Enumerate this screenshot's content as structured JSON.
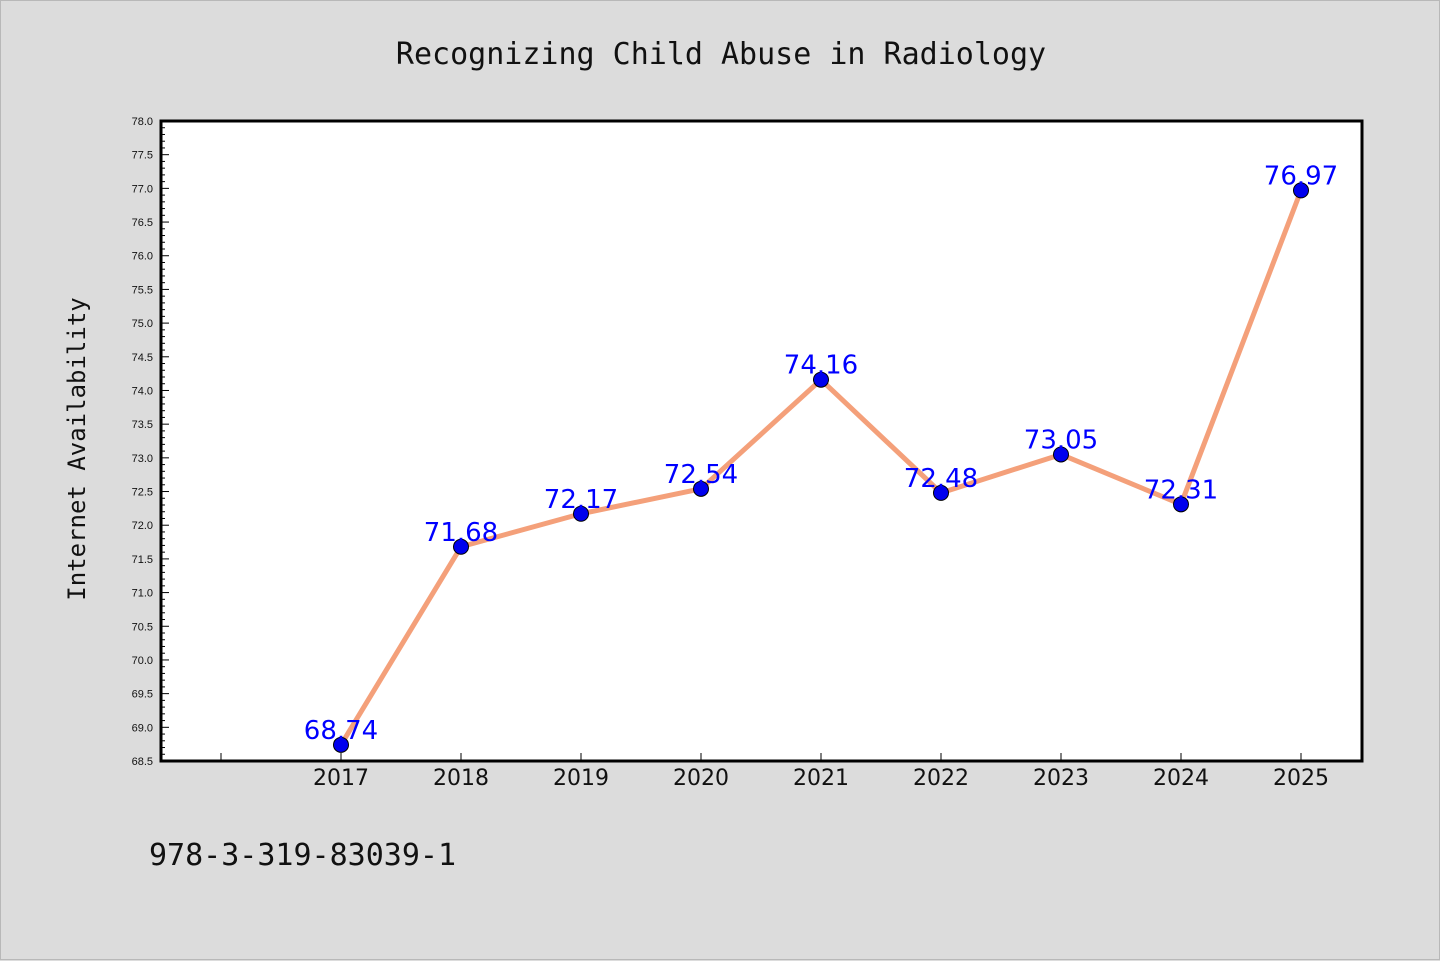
{
  "chart_data": {
    "type": "line",
    "title": "Recognizing Child Abuse in Radiology",
    "ylabel": "Internet Availability",
    "xlabel": "",
    "x": [
      "2017",
      "2018",
      "2019",
      "2020",
      "2021",
      "2022",
      "2023",
      "2024",
      "2025"
    ],
    "series": [
      {
        "values": [
          68.74,
          71.68,
          72.17,
          72.54,
          74.16,
          72.48,
          73.05,
          72.31,
          76.97
        ]
      }
    ],
    "data_labels": [
      "68.74",
      "71.68",
      "72.17",
      "72.54",
      "74.16",
      "72.48",
      "73.05",
      "72.31",
      "76.97"
    ],
    "ylim": [
      68.5,
      78.0
    ],
    "yticks": [
      "68.5",
      "69.0",
      "69.5",
      "70.0",
      "70.5",
      "71.0",
      "71.5",
      "72.0",
      "72.5",
      "73.0",
      "73.5",
      "74.0",
      "74.5",
      "75.0",
      "75.5",
      "76.0",
      "76.5",
      "77.0",
      "77.5",
      "78.0"
    ],
    "grid": false,
    "line_color": "#f4a07a",
    "marker_color": "#0000ee",
    "label_color": "#0000ff"
  },
  "footer": {
    "isbn": "978-3-319-83039-1"
  }
}
